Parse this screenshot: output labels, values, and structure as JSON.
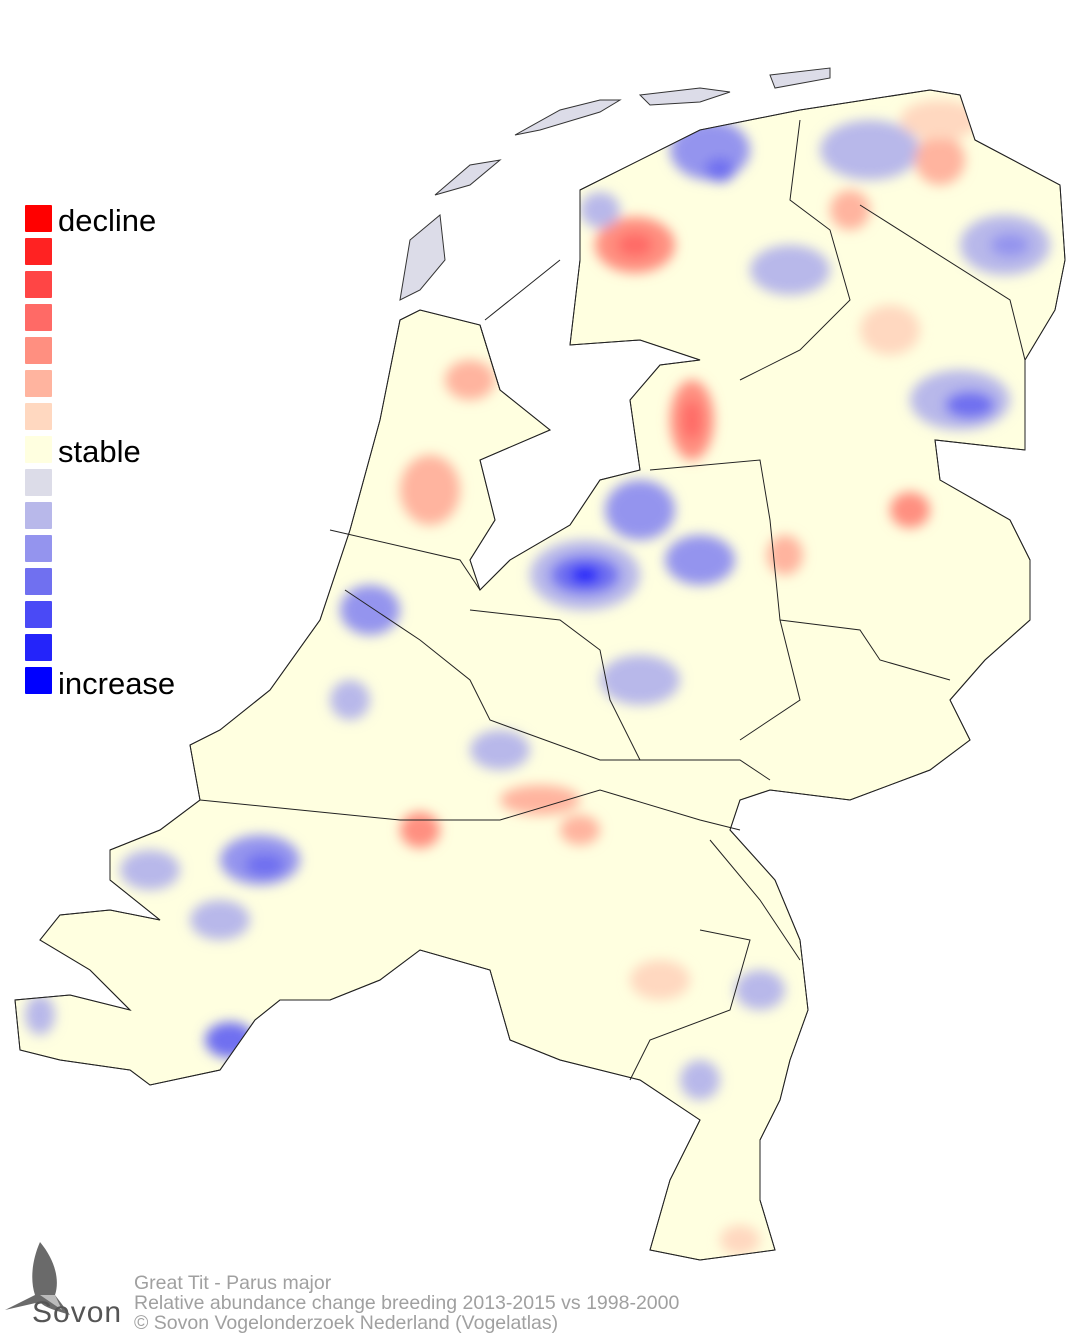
{
  "legend": {
    "labels": {
      "decline": "decline",
      "stable": "stable",
      "increase": "increase"
    },
    "colors": [
      "#ff0000",
      "#ff2222",
      "#ff4545",
      "#ff6a66",
      "#ff8f80",
      "#ffb49f",
      "#ffd8c0",
      "#ffffe0",
      "#dcdce8",
      "#b8b8ea",
      "#9494ee",
      "#7070f0",
      "#4a4af6",
      "#2424fa",
      "#0000ff"
    ]
  },
  "caption": {
    "species": "Great Tit - Parus major",
    "description": "Relative abundance change breeding 2013-2015 vs 1998-2000",
    "copyright": "© Sovon Vogelonderzoek Nederland (Vogelatlas)"
  },
  "logo": {
    "text": "Sovon"
  },
  "map": {
    "base_color": "#ffffe0",
    "border_color": "#000000"
  }
}
